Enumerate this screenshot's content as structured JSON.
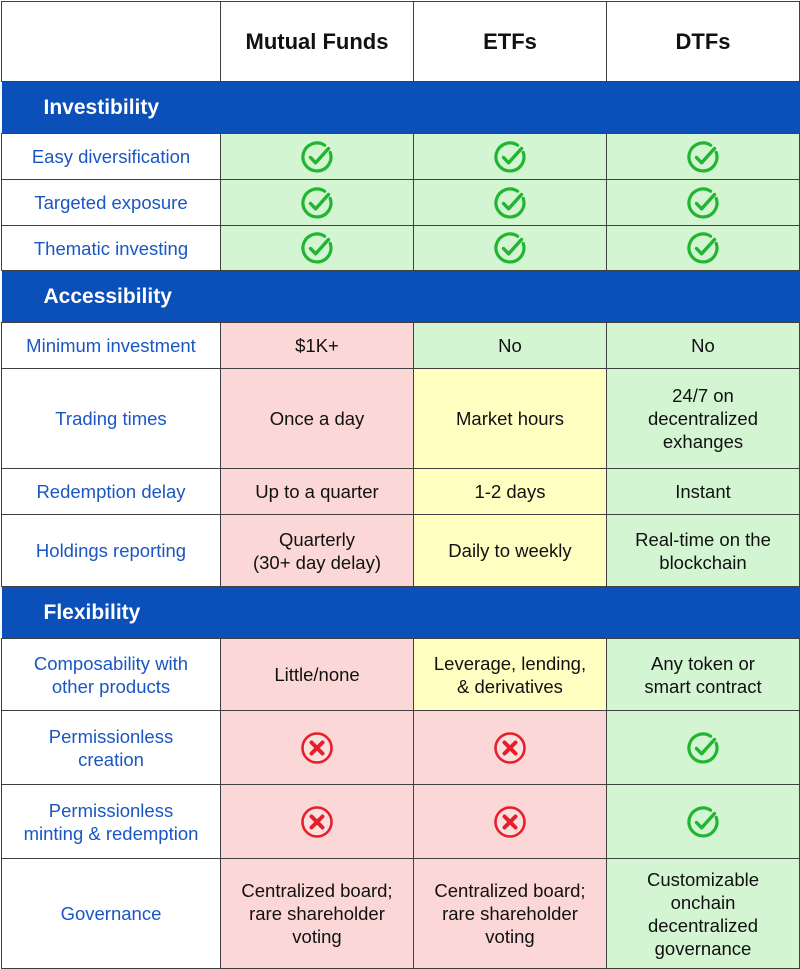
{
  "columns": [
    "",
    "Mutual Funds",
    "ETFs",
    "DTFs"
  ],
  "colors": {
    "section_header": "#0b4fb8",
    "label_text": "#1a56c4",
    "green_cell": "#d3f5d2",
    "red_cell": "#fcd7d7",
    "yellow_cell": "#ffffc2",
    "check_icon": "#22b532",
    "cross_icon": "#e5202b"
  },
  "sections": [
    {
      "title": "Investibility",
      "rows": [
        {
          "label": "Easy diversification",
          "cells": [
            {
              "icon": "check-icon",
              "color": "green"
            },
            {
              "icon": "check-icon",
              "color": "green"
            },
            {
              "icon": "check-icon",
              "color": "green"
            }
          ]
        },
        {
          "label": "Targeted exposure",
          "cells": [
            {
              "icon": "check-icon",
              "color": "green"
            },
            {
              "icon": "check-icon",
              "color": "green"
            },
            {
              "icon": "check-icon",
              "color": "green"
            }
          ]
        },
        {
          "label": "Thematic investing",
          "cells": [
            {
              "icon": "check-icon",
              "color": "green"
            },
            {
              "icon": "check-icon",
              "color": "green"
            },
            {
              "icon": "check-icon",
              "color": "green"
            }
          ]
        }
      ]
    },
    {
      "title": "Accessibility",
      "rows": [
        {
          "label": "Minimum investment",
          "cells": [
            {
              "text": "$1K+",
              "color": "red"
            },
            {
              "text": "No",
              "color": "green"
            },
            {
              "text": "No",
              "color": "green"
            }
          ]
        },
        {
          "label": "Trading times",
          "cells": [
            {
              "text": "Once a day",
              "color": "red"
            },
            {
              "text": "Market hours",
              "color": "yellow"
            },
            {
              "text": "24/7 on\ndecentralized\nexhanges",
              "color": "green"
            }
          ]
        },
        {
          "label": "Redemption delay",
          "cells": [
            {
              "text": "Up to a quarter",
              "color": "red"
            },
            {
              "text": "1-2 days",
              "color": "yellow"
            },
            {
              "text": "Instant",
              "color": "green"
            }
          ]
        },
        {
          "label": "Holdings reporting",
          "cells": [
            {
              "text": "Quarterly\n(30+ day delay)",
              "color": "red"
            },
            {
              "text": "Daily to weekly",
              "color": "yellow"
            },
            {
              "text": "Real-time on the\nblockchain",
              "color": "green"
            }
          ]
        }
      ]
    },
    {
      "title": "Flexibility",
      "rows": [
        {
          "label": "Composability with\nother products",
          "cells": [
            {
              "text": "Little/none",
              "color": "red"
            },
            {
              "text": "Leverage, lending,\n& derivatives",
              "color": "yellow"
            },
            {
              "text": "Any token or\nsmart contract",
              "color": "green"
            }
          ]
        },
        {
          "label": "Permissionless\ncreation",
          "cells": [
            {
              "icon": "cross-icon",
              "color": "red"
            },
            {
              "icon": "cross-icon",
              "color": "red"
            },
            {
              "icon": "check-icon",
              "color": "green"
            }
          ]
        },
        {
          "label": "Permissionless\nminting & redemption",
          "cells": [
            {
              "icon": "cross-icon",
              "color": "red"
            },
            {
              "icon": "cross-icon",
              "color": "red"
            },
            {
              "icon": "check-icon",
              "color": "green"
            }
          ]
        },
        {
          "label": "Governance",
          "cells": [
            {
              "text": "Centralized board;\nrare shareholder\nvoting",
              "color": "red"
            },
            {
              "text": "Centralized board;\nrare shareholder\nvoting",
              "color": "red"
            },
            {
              "text": "Customizable\nonchain\ndecentralized\ngovernance",
              "color": "green"
            }
          ]
        }
      ]
    }
  ]
}
